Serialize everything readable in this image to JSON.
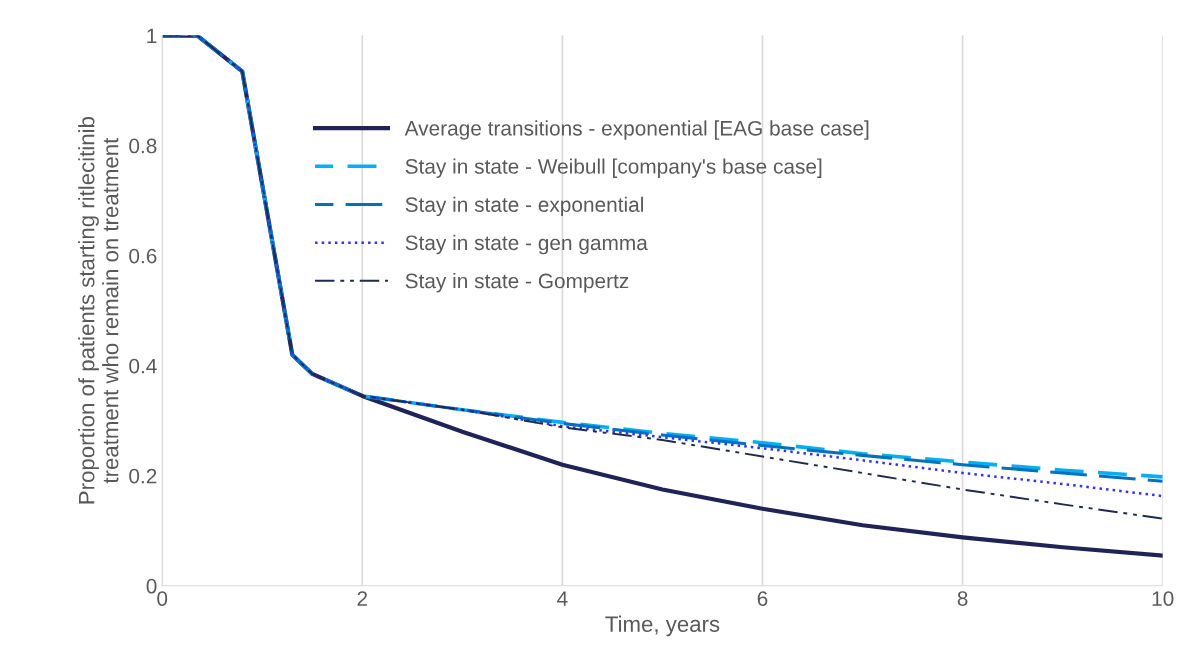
{
  "chart_data": {
    "type": "line",
    "xlabel": "Time, years",
    "ylabel": "Proportion of patients starting ritlecitinib\ntreatment who remain on treatment",
    "xlim": [
      0,
      10
    ],
    "xticks": [
      0,
      2,
      4,
      6,
      8,
      10
    ],
    "ylim": [
      0,
      1
    ],
    "yticks": [
      0,
      0.2,
      0.4,
      0.6,
      0.8,
      1
    ],
    "grid": "x",
    "legend": "top",
    "marker": "none",
    "series": [
      {
        "name": "Average transitions - exponential [EAG base case]",
        "color": "#1f2355",
        "line_style": "solid",
        "x": [
          0,
          0.35,
          0.8,
          1.3,
          1.5,
          2,
          3,
          4,
          5,
          6,
          7,
          8,
          9,
          10
        ],
        "values": [
          1,
          1,
          0.935,
          0.42,
          0.385,
          0.345,
          0.28,
          0.22,
          0.175,
          0.14,
          0.11,
          0.088,
          0.07,
          0.055
        ]
      },
      {
        "name": "Stay in state - Weibull [company's base case]",
        "color": "#00b0f0",
        "line_style": "dashed",
        "x": [
          0,
          0.35,
          0.8,
          1.3,
          1.5,
          2,
          3,
          4,
          5,
          6,
          7,
          8,
          9,
          10
        ],
        "values": [
          1,
          1,
          0.935,
          0.42,
          0.385,
          0.345,
          0.32,
          0.297,
          0.277,
          0.26,
          0.24,
          0.225,
          0.21,
          0.198
        ]
      },
      {
        "name": "Stay in state - exponential",
        "color": "#0070c0",
        "line_style": "dashed",
        "x": [
          0,
          0.35,
          0.8,
          1.3,
          1.5,
          2,
          3,
          4,
          5,
          6,
          7,
          8,
          9,
          10
        ],
        "values": [
          1,
          1,
          0.935,
          0.42,
          0.385,
          0.345,
          0.32,
          0.295,
          0.274,
          0.255,
          0.237,
          0.22,
          0.205,
          0.19
        ]
      },
      {
        "name": "Stay in state - gen gamma",
        "color": "#3333ee",
        "line_style": "dotted",
        "x": [
          0,
          0.35,
          0.8,
          1.3,
          1.5,
          2,
          3,
          4,
          5,
          6,
          7,
          8,
          9,
          10
        ],
        "values": [
          1,
          1,
          0.935,
          0.42,
          0.385,
          0.345,
          0.32,
          0.29,
          0.27,
          0.25,
          0.228,
          0.205,
          0.185,
          0.163
        ]
      },
      {
        "name": "Stay in state - Gompertz",
        "color": "#1f2a4f",
        "line_style": "dashdot",
        "x": [
          0,
          0.35,
          0.8,
          1.3,
          1.5,
          2,
          3,
          4,
          5,
          6,
          7,
          8,
          9,
          10
        ],
        "values": [
          1,
          1,
          0.935,
          0.42,
          0.385,
          0.345,
          0.32,
          0.288,
          0.265,
          0.235,
          0.205,
          0.175,
          0.148,
          0.122
        ]
      }
    ]
  }
}
